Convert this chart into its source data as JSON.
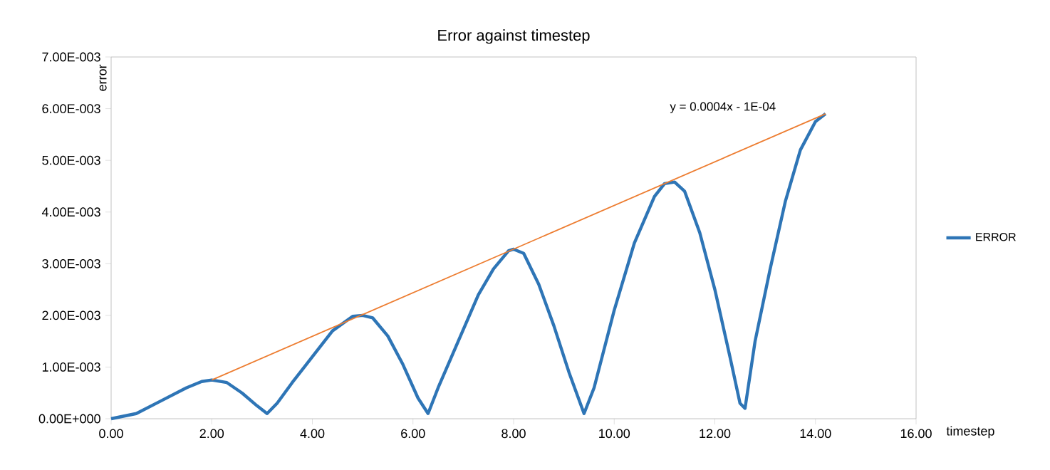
{
  "chart_data": {
    "type": "line",
    "title": "Error against timestep",
    "xlabel": "timestep",
    "ylabel": "error",
    "xlim": [
      0,
      16
    ],
    "ylim": [
      0,
      0.007
    ],
    "xticks": [
      {
        "value": 0,
        "label": "0.00"
      },
      {
        "value": 2,
        "label": "2.00"
      },
      {
        "value": 4,
        "label": "4.00"
      },
      {
        "value": 6,
        "label": "6.00"
      },
      {
        "value": 8,
        "label": "8.00"
      },
      {
        "value": 10,
        "label": "10.00"
      },
      {
        "value": 12,
        "label": "12.00"
      },
      {
        "value": 14,
        "label": "14.00"
      },
      {
        "value": 16,
        "label": "16.00"
      }
    ],
    "yticks": [
      {
        "value": 0,
        "label": "0.00E+000"
      },
      {
        "value": 0.001,
        "label": "1.00E-003"
      },
      {
        "value": 0.002,
        "label": "2.00E-003"
      },
      {
        "value": 0.003,
        "label": "3.00E-003"
      },
      {
        "value": 0.004,
        "label": "4.00E-003"
      },
      {
        "value": 0.005,
        "label": "5.00E-003"
      },
      {
        "value": 0.006,
        "label": "6.00E-003"
      },
      {
        "value": 0.007,
        "label": "7.00E-003"
      }
    ],
    "grid": false,
    "legend": "right",
    "marker": "none",
    "line_style": "solid",
    "annotations": [
      "y = 0.0004x - 1E-04"
    ],
    "series": [
      {
        "name": "ERROR",
        "color": "#2e75b6",
        "x": [
          0,
          0.5,
          1.0,
          1.5,
          1.8,
          2.0,
          2.3,
          2.6,
          2.9,
          3.1,
          3.3,
          3.6,
          4.0,
          4.4,
          4.8,
          5.0,
          5.2,
          5.5,
          5.8,
          6.1,
          6.3,
          6.5,
          6.9,
          7.3,
          7.6,
          7.9,
          8.0,
          8.2,
          8.5,
          8.8,
          9.1,
          9.4,
          9.6,
          10.0,
          10.4,
          10.8,
          11.0,
          11.2,
          11.4,
          11.7,
          12.0,
          12.3,
          12.5,
          12.6,
          12.8,
          13.1,
          13.4,
          13.7,
          14.0,
          14.2
        ],
        "values": [
          0,
          0.0001,
          0.00035,
          0.0006,
          0.00072,
          0.00075,
          0.0007,
          0.0005,
          0.00025,
          0.0001,
          0.0003,
          0.0007,
          0.0012,
          0.0017,
          0.00198,
          0.002,
          0.00195,
          0.0016,
          0.00105,
          0.0004,
          0.0001,
          0.0006,
          0.0015,
          0.0024,
          0.0029,
          0.00325,
          0.00328,
          0.0032,
          0.0026,
          0.0018,
          0.0009,
          0.0001,
          0.0006,
          0.0021,
          0.0034,
          0.0043,
          0.00455,
          0.00458,
          0.0044,
          0.0036,
          0.0025,
          0.0012,
          0.0003,
          0.0002,
          0.0015,
          0.0029,
          0.0042,
          0.0052,
          0.00575,
          0.0059
        ]
      },
      {
        "color": "#ed7d31",
        "x": [
          2.0,
          14.2
        ],
        "values": [
          0.00075,
          0.0059
        ]
      }
    ]
  }
}
